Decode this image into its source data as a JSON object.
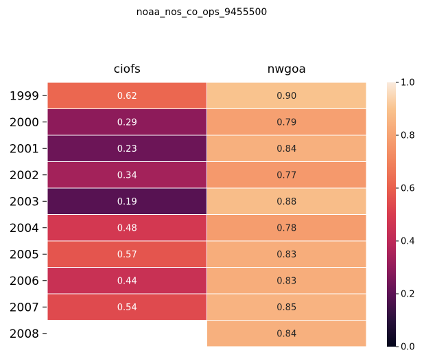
{
  "chart_data": {
    "type": "heatmap",
    "title": "noaa_nos_co_ops_9455500",
    "columns": [
      "ciofs",
      "nwgoa"
    ],
    "rows": [
      "1999",
      "2000",
      "2001",
      "2002",
      "2003",
      "2004",
      "2005",
      "2006",
      "2007",
      "2008"
    ],
    "values": [
      [
        0.62,
        0.9
      ],
      [
        0.29,
        0.79
      ],
      [
        0.23,
        0.84
      ],
      [
        0.34,
        0.77
      ],
      [
        0.19,
        0.88
      ],
      [
        0.48,
        0.78
      ],
      [
        0.57,
        0.83
      ],
      [
        0.44,
        0.83
      ],
      [
        0.54,
        0.85
      ],
      [
        null,
        0.84
      ]
    ],
    "value_labels": [
      [
        "0.62",
        "0.90"
      ],
      [
        "0.29",
        "0.79"
      ],
      [
        "0.23",
        "0.84"
      ],
      [
        "0.34",
        "0.77"
      ],
      [
        "0.19",
        "0.88"
      ],
      [
        "0.48",
        "0.78"
      ],
      [
        "0.57",
        "0.83"
      ],
      [
        "0.44",
        "0.83"
      ],
      [
        "0.54",
        "0.85"
      ],
      [
        "",
        "0.84"
      ]
    ],
    "colorscale": "rocket-like",
    "vmin": 0.0,
    "vmax": 1.0,
    "colorbar_ticks": [
      "0.0",
      "0.2",
      "0.4",
      "0.6",
      "0.8",
      "1.0"
    ],
    "colorbar_tick_values": [
      0.0,
      0.2,
      0.4,
      0.6,
      0.8,
      1.0
    ]
  }
}
